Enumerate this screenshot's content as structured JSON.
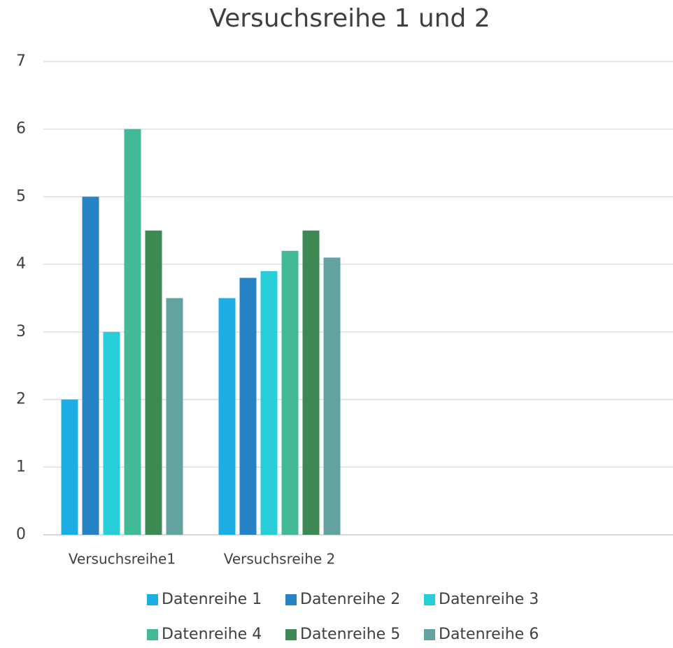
{
  "chart_data": {
    "type": "bar",
    "title": "Versuchsreihe 1 und 2",
    "categories": [
      "Versuchsreihe1",
      "Versuchsreihe 2",
      null,
      null
    ],
    "series": [
      {
        "name": "Datenreihe 1",
        "color": "#1cade4",
        "values": [
          2,
          3.5,
          null,
          null
        ]
      },
      {
        "name": "Datenreihe 2",
        "color": "#2683c6",
        "values": [
          5,
          3.8,
          null,
          null
        ]
      },
      {
        "name": "Datenreihe 3",
        "color": "#27ced7",
        "values": [
          3,
          3.9,
          null,
          null
        ]
      },
      {
        "name": "Datenreihe 4",
        "color": "#42ba97",
        "values": [
          6,
          4.2,
          null,
          null
        ]
      },
      {
        "name": "Datenreihe 5",
        "color": "#3e8853",
        "values": [
          4.5,
          4.5,
          null,
          null
        ]
      },
      {
        "name": "Datenreihe 6",
        "color": "#62a39f",
        "values": [
          3.5,
          4.1,
          null,
          null
        ]
      }
    ],
    "ylim": [
      0,
      7
    ],
    "yticks": [
      0,
      1,
      2,
      3,
      4,
      5,
      6,
      7
    ],
    "grid": true,
    "legend": "bottom"
  }
}
